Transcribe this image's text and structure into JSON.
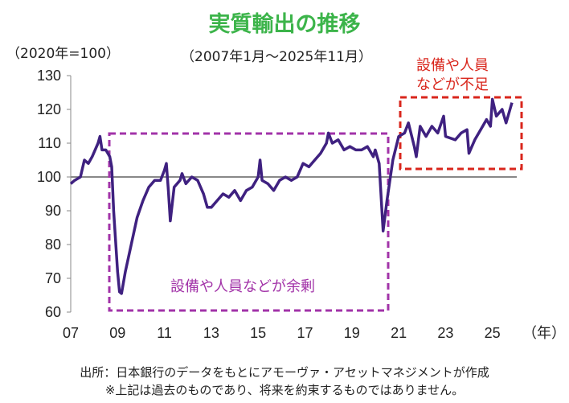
{
  "title": "実質輸出の推移",
  "unit_label": "（2020年=100）",
  "period_label": "（2007年1月～2025年11月）",
  "annotations": {
    "shortage": [
      "設備や人員",
      "などが不足"
    ],
    "surplus": "設備や人員などが余剰"
  },
  "x_unit": "（年）",
  "source": [
    "出所：日本銀行のデータをもとにアモーヴァ・アセットマネジメントが作成",
    "※上記は過去のものであり、将来を約束するものではありません。"
  ],
  "colors": {
    "title": "#3cb44a",
    "line": "#3f2180",
    "surplus_box": "#a233a8",
    "shortage_box": "#d9261c",
    "reference_line": "#888888"
  },
  "chart_data": {
    "type": "line",
    "ylim": [
      60,
      130
    ],
    "yticks": [
      60,
      70,
      80,
      90,
      100,
      110,
      120,
      130
    ],
    "xticks": [
      "07",
      "09",
      "11",
      "13",
      "15",
      "17",
      "19",
      "21",
      "23",
      "25"
    ],
    "xlim": [
      "2007-01",
      "2025-11"
    ],
    "reference_line": 100,
    "grid": false,
    "series": [
      {
        "points": [
          [
            "2007-01",
            98
          ],
          [
            "2007-03",
            99
          ],
          [
            "2007-06",
            100
          ],
          [
            "2007-08",
            105
          ],
          [
            "2007-10",
            104
          ],
          [
            "2007-12",
            106
          ],
          [
            "2008-03",
            110
          ],
          [
            "2008-04",
            112
          ],
          [
            "2008-05",
            108
          ],
          [
            "2008-07",
            108
          ],
          [
            "2008-09",
            106
          ],
          [
            "2008-10",
            103
          ],
          [
            "2008-11",
            90
          ],
          [
            "2009-01",
            72
          ],
          [
            "2009-02",
            66
          ],
          [
            "2009-03",
            65.5
          ],
          [
            "2009-05",
            72
          ],
          [
            "2009-08",
            80
          ],
          [
            "2009-11",
            88
          ],
          [
            "2010-02",
            93
          ],
          [
            "2010-05",
            97
          ],
          [
            "2010-08",
            99
          ],
          [
            "2010-11",
            99
          ],
          [
            "2011-01",
            102
          ],
          [
            "2011-02",
            104
          ],
          [
            "2011-03",
            96
          ],
          [
            "2011-04",
            87
          ],
          [
            "2011-06",
            97
          ],
          [
            "2011-09",
            99
          ],
          [
            "2011-10",
            101
          ],
          [
            "2011-12",
            98
          ],
          [
            "2012-03",
            100
          ],
          [
            "2012-06",
            99
          ],
          [
            "2012-09",
            95
          ],
          [
            "2012-11",
            91
          ],
          [
            "2013-01",
            91
          ],
          [
            "2013-04",
            93
          ],
          [
            "2013-07",
            95
          ],
          [
            "2013-10",
            94
          ],
          [
            "2014-01",
            96
          ],
          [
            "2014-04",
            93
          ],
          [
            "2014-07",
            96
          ],
          [
            "2014-10",
            97
          ],
          [
            "2015-01",
            100
          ],
          [
            "2015-02",
            105
          ],
          [
            "2015-03",
            99
          ],
          [
            "2015-06",
            98
          ],
          [
            "2015-09",
            96
          ],
          [
            "2015-12",
            99
          ],
          [
            "2016-03",
            100
          ],
          [
            "2016-06",
            99
          ],
          [
            "2016-09",
            100
          ],
          [
            "2016-12",
            104
          ],
          [
            "2017-03",
            103
          ],
          [
            "2017-06",
            105
          ],
          [
            "2017-09",
            107
          ],
          [
            "2017-12",
            110
          ],
          [
            "2018-01",
            113
          ],
          [
            "2018-03",
            110
          ],
          [
            "2018-06",
            111
          ],
          [
            "2018-09",
            108
          ],
          [
            "2018-12",
            109
          ],
          [
            "2019-03",
            108
          ],
          [
            "2019-06",
            108
          ],
          [
            "2019-09",
            109
          ],
          [
            "2019-12",
            106
          ],
          [
            "2020-01",
            108
          ],
          [
            "2020-03",
            104
          ],
          [
            "2020-05",
            84
          ],
          [
            "2020-07",
            93
          ],
          [
            "2020-10",
            105
          ],
          [
            "2021-01",
            112
          ],
          [
            "2021-04",
            113
          ],
          [
            "2021-06",
            116
          ],
          [
            "2021-09",
            109
          ],
          [
            "2021-10",
            106
          ],
          [
            "2021-12",
            115
          ],
          [
            "2022-03",
            112
          ],
          [
            "2022-06",
            115
          ],
          [
            "2022-09",
            113
          ],
          [
            "2022-12",
            118
          ],
          [
            "2023-01",
            112
          ],
          [
            "2023-06",
            111
          ],
          [
            "2023-09",
            113
          ],
          [
            "2023-12",
            114
          ],
          [
            "2024-01",
            107
          ],
          [
            "2024-04",
            111
          ],
          [
            "2024-07",
            114
          ],
          [
            "2024-10",
            117
          ],
          [
            "2024-12",
            115
          ],
          [
            "2025-01",
            123
          ],
          [
            "2025-03",
            118
          ],
          [
            "2025-06",
            120
          ],
          [
            "2025-08",
            116
          ],
          [
            "2025-11",
            122
          ]
        ]
      }
    ]
  }
}
